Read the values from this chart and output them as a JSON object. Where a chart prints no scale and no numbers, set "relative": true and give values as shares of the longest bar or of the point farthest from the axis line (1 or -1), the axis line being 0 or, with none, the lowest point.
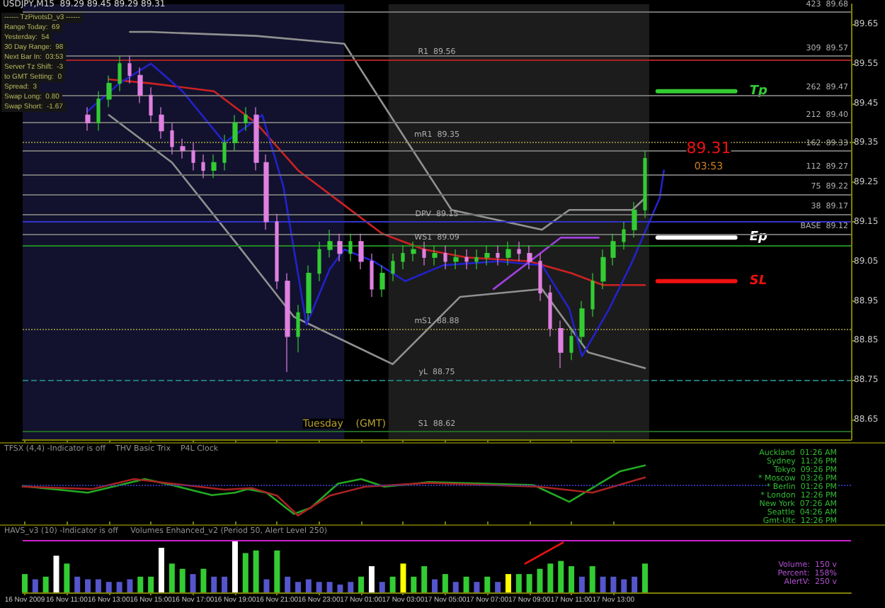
{
  "chart_data": [
    {
      "type": "candlestick",
      "title": "USDJPY,M15  89.29 89.45 89.29 89.31",
      "x": [
        "2009-11-16T12:00",
        "2009-11-16T12:30",
        "2009-11-16T13:00",
        "2009-11-16T13:30",
        "2009-11-16T14:00",
        "2009-11-16T14:30",
        "2009-11-16T15:00",
        "2009-11-16T15:30",
        "2009-11-16T16:00",
        "2009-11-16T16:30",
        "2009-11-16T17:00",
        "2009-11-16T17:30",
        "2009-11-16T18:00",
        "2009-11-16T18:30",
        "2009-11-16T19:00",
        "2009-11-16T19:30",
        "2009-11-16T20:00",
        "2009-11-16T20:30",
        "2009-11-16T21:00",
        "2009-11-16T21:30",
        "2009-11-16T22:00",
        "2009-11-16T22:30",
        "2009-11-16T23:00",
        "2009-11-16T23:30",
        "2009-11-17T00:00",
        "2009-11-17T00:30",
        "2009-11-17T01:00",
        "2009-11-17T01:30",
        "2009-11-17T02:00",
        "2009-11-17T02:30",
        "2009-11-17T03:00",
        "2009-11-17T03:30",
        "2009-11-17T04:00",
        "2009-11-17T04:30",
        "2009-11-17T05:00",
        "2009-11-17T05:30",
        "2009-11-17T06:00",
        "2009-11-17T06:30",
        "2009-11-17T07:00",
        "2009-11-17T07:30",
        "2009-11-17T08:00",
        "2009-11-17T08:30",
        "2009-11-17T09:00",
        "2009-11-17T09:30",
        "2009-11-17T10:00",
        "2009-11-17T10:30",
        "2009-11-17T11:00",
        "2009-11-17T11:30",
        "2009-11-17T12:00",
        "2009-11-17T12:30",
        "2009-11-17T13:00",
        "2009-11-17T13:30",
        "2009-11-17T14:00",
        "2009-11-17T14:30"
      ],
      "ohlc": [
        [
          89.42,
          89.44,
          89.38,
          89.4
        ],
        [
          89.4,
          89.48,
          89.38,
          89.46
        ],
        [
          89.46,
          89.52,
          89.44,
          89.5
        ],
        [
          89.5,
          89.57,
          89.48,
          89.55
        ],
        [
          89.55,
          89.57,
          89.5,
          89.52
        ],
        [
          89.52,
          89.54,
          89.45,
          89.47
        ],
        [
          89.47,
          89.49,
          89.4,
          89.42
        ],
        [
          89.42,
          89.44,
          89.36,
          89.38
        ],
        [
          89.38,
          89.4,
          89.32,
          89.34
        ],
        [
          89.34,
          89.36,
          89.31,
          89.33
        ],
        [
          89.33,
          89.35,
          89.28,
          89.3
        ],
        [
          89.3,
          89.32,
          89.26,
          89.28
        ],
        [
          89.28,
          89.32,
          89.26,
          89.3
        ],
        [
          89.3,
          89.37,
          89.28,
          89.35
        ],
        [
          89.35,
          89.42,
          89.33,
          89.4
        ],
        [
          89.4,
          89.44,
          89.38,
          89.42
        ],
        [
          89.42,
          89.44,
          89.28,
          89.3
        ],
        [
          89.3,
          89.32,
          89.13,
          89.15
        ],
        [
          89.15,
          89.17,
          88.98,
          89.0
        ],
        [
          89.0,
          89.02,
          88.77,
          88.86
        ],
        [
          88.86,
          88.94,
          88.82,
          88.92
        ],
        [
          88.92,
          89.04,
          88.9,
          89.02
        ],
        [
          89.02,
          89.1,
          89.0,
          89.08
        ],
        [
          89.08,
          89.13,
          89.06,
          89.1
        ],
        [
          89.1,
          89.12,
          89.05,
          89.07
        ],
        [
          89.07,
          89.12,
          89.05,
          89.1
        ],
        [
          89.1,
          89.12,
          89.03,
          89.05
        ],
        [
          89.05,
          89.07,
          88.96,
          88.98
        ],
        [
          88.98,
          89.04,
          88.96,
          89.02
        ],
        [
          89.02,
          89.07,
          89.0,
          89.05
        ],
        [
          89.05,
          89.09,
          89.03,
          89.07
        ],
        [
          89.07,
          89.1,
          89.05,
          89.08
        ],
        [
          89.08,
          89.1,
          89.04,
          89.06
        ],
        [
          89.06,
          89.09,
          89.04,
          89.07
        ],
        [
          89.07,
          89.09,
          89.03,
          89.05
        ],
        [
          89.05,
          89.08,
          89.03,
          89.06
        ],
        [
          89.06,
          89.08,
          89.03,
          89.05
        ],
        [
          89.05,
          89.08,
          89.03,
          89.06
        ],
        [
          89.06,
          89.09,
          89.04,
          89.07
        ],
        [
          89.07,
          89.09,
          89.04,
          89.06
        ],
        [
          89.06,
          89.1,
          89.04,
          89.08
        ],
        [
          89.08,
          89.1,
          89.05,
          89.07
        ],
        [
          89.07,
          89.09,
          89.03,
          89.05
        ],
        [
          89.05,
          89.07,
          88.95,
          88.97
        ],
        [
          88.97,
          88.99,
          88.86,
          88.88
        ],
        [
          88.88,
          88.9,
          88.78,
          88.82
        ],
        [
          88.82,
          88.88,
          88.8,
          88.86
        ],
        [
          88.86,
          88.95,
          88.84,
          88.93
        ],
        [
          88.93,
          89.02,
          88.91,
          89.0
        ],
        [
          89.0,
          89.08,
          88.98,
          89.06
        ],
        [
          89.06,
          89.12,
          89.04,
          89.1
        ],
        [
          89.1,
          89.15,
          89.08,
          89.13
        ],
        [
          89.13,
          89.2,
          89.11,
          89.18
        ],
        [
          89.18,
          89.33,
          89.16,
          89.31
        ]
      ],
      "colors": [
        "#e080e0",
        "#33cc33",
        "#33cc33",
        "#33cc33",
        "#e080e0",
        "#e080e0",
        "#e080e0",
        "#e080e0",
        "#e080e0",
        "#e080e0",
        "#e080e0",
        "#e080e0",
        "#33cc33",
        "#33cc33",
        "#33cc33",
        "#33cc33",
        "#e080e0",
        "#e080e0",
        "#e080e0",
        "#e080e0",
        "#33cc33",
        "#33cc33",
        "#33cc33",
        "#33cc33",
        "#e080e0",
        "#33cc33",
        "#e080e0",
        "#e080e0",
        "#33cc33",
        "#33cc33",
        "#33cc33",
        "#33cc33",
        "#e080e0",
        "#33cc33",
        "#e080e0",
        "#33cc33",
        "#e080e0",
        "#33cc33",
        "#33cc33",
        "#e080e0",
        "#33cc33",
        "#e080e0",
        "#e080e0",
        "#e080e0",
        "#e080e0",
        "#e080e0",
        "#33cc33",
        "#33cc33",
        "#33cc33",
        "#33cc33",
        "#33cc33",
        "#33cc33",
        "#33cc33",
        "#33cc33"
      ],
      "series": [
        {
          "type": "line",
          "color": "#909090",
          "x": [
            "2009-11-16T14:00",
            "2009-11-16T15:00",
            "2009-11-16T20:00",
            "2009-11-17T00:12",
            "2009-11-17T03:06",
            "2009-11-17T05:18",
            "2009-11-17T09:36",
            "2009-11-17T10:54",
            "2009-11-17T13:54",
            "2009-11-17T14:30"
          ],
          "values": [
            89.63,
            89.63,
            89.62,
            89.6,
            89.36,
            89.18,
            89.13,
            89.18,
            89.18,
            89.21
          ]
        },
        {
          "type": "line",
          "color": "#909090",
          "x": [
            "2009-11-16T13:00",
            "2009-11-16T16:00",
            "2009-11-16T19:00",
            "2009-11-16T21:48",
            "2009-11-17T02:30",
            "2009-11-17T05:42",
            "2009-11-17T09:36",
            "2009-11-17T11:48",
            "2009-11-17T14:30"
          ],
          "values": [
            89.42,
            89.3,
            89.1,
            88.91,
            88.79,
            88.96,
            88.98,
            88.82,
            88.78
          ]
        },
        {
          "type": "line",
          "color": "#cc2222",
          "x": [
            "2009-11-16T13:00",
            "2009-11-16T15:00",
            "2009-11-16T18:00",
            "2009-11-16T20:00",
            "2009-11-16T22:00",
            "2009-11-17T00:00",
            "2009-11-17T02:00",
            "2009-11-17T04:00",
            "2009-11-17T06:00",
            "2009-11-17T09:00",
            "2009-11-17T11:00",
            "2009-11-17T12:30",
            "2009-11-17T14:30"
          ],
          "values": [
            89.51,
            89.5,
            89.48,
            89.4,
            89.28,
            89.2,
            89.12,
            89.08,
            89.06,
            89.05,
            89.02,
            88.99,
            88.99
          ]
        },
        {
          "type": "line",
          "color": "#2222cc",
          "x": [
            "2009-11-16T12:00",
            "2009-11-16T13:30",
            "2009-11-16T15:00",
            "2009-11-16T16:30",
            "2009-11-16T18:30",
            "2009-11-16T20:18",
            "2009-11-16T21:18",
            "2009-11-16T22:24",
            "2009-11-16T23:30",
            "2009-11-17T00:12",
            "2009-11-17T01:36",
            "2009-11-17T03:06",
            "2009-11-17T04:54",
            "2009-11-17T07:30",
            "2009-11-17T09:36",
            "2009-11-17T10:54",
            "2009-11-17T11:30",
            "2009-11-17T12:48",
            "2009-11-17T13:54",
            "2009-11-17T15:12",
            "2009-11-17T15:24"
          ],
          "values": [
            89.43,
            89.5,
            89.55,
            89.48,
            89.35,
            89.42,
            89.24,
            88.89,
            89.03,
            89.08,
            89.05,
            89.0,
            89.04,
            89.05,
            89.04,
            88.93,
            88.81,
            88.93,
            89.05,
            89.21,
            89.28
          ]
        },
        {
          "type": "line",
          "color": "#a040e0",
          "x": [
            "2009-11-17T07:18",
            "2009-11-17T10:30",
            "2009-11-17T12:18"
          ],
          "values": [
            88.98,
            89.11,
            89.11
          ]
        },
        {
          "type": "line",
          "name": "Tp",
          "color": "#33cc33",
          "x": [
            "2009-11-17T15:06",
            "2009-11-17T18:48"
          ],
          "values": [
            89.48,
            89.48
          ]
        },
        {
          "type": "line",
          "name": "Ep",
          "color": "#ffffff",
          "x": [
            "2009-11-17T15:06",
            "2009-11-17T18:48"
          ],
          "values": [
            89.11,
            89.11
          ]
        },
        {
          "type": "line",
          "name": "SL",
          "color": "#ee1111",
          "x": [
            "2009-11-17T15:06",
            "2009-11-17T18:48"
          ],
          "values": [
            89.0,
            89.0
          ]
        }
      ],
      "xlim": [
        "2009-11-16T08:54",
        "2009-11-18T00:18"
      ],
      "xticks": [
        {
          "value": "2009-11-16T09:00",
          "label": null
        },
        {
          "value": "2009-11-16T11:00",
          "label": null
        },
        {
          "value": "2009-11-16T13:00",
          "label": null
        },
        {
          "value": "2009-11-16T15:00",
          "label": null
        },
        {
          "value": "2009-11-16T17:00",
          "label": null
        },
        {
          "value": "2009-11-16T19:00",
          "label": null
        },
        {
          "value": "2009-11-16T21:00",
          "label": null
        },
        {
          "value": "2009-11-16T23:00",
          "label": null
        },
        {
          "value": "2009-11-17T01:00",
          "label": null
        },
        {
          "value": "2009-11-17T03:00",
          "label": null
        },
        {
          "value": "2009-11-17T05:00",
          "label": null
        },
        {
          "value": "2009-11-17T07:00",
          "label": null
        },
        {
          "value": "2009-11-17T09:00",
          "label": null
        },
        {
          "value": "2009-11-17T11:00",
          "label": null
        },
        {
          "value": "2009-11-17T13:00",
          "label": null
        }
      ],
      "ylim": [
        88.6,
        89.7
      ],
      "yticks": [
        88.65,
        88.75,
        88.85,
        88.95,
        89.05,
        89.15,
        89.25,
        89.35,
        89.45,
        89.55,
        89.65
      ],
      "tick_labels": "y",
      "ref_lines": [
        {
          "axis": "y",
          "value": 89.56,
          "label": "R1  89.56",
          "color": "#aa2222"
        },
        {
          "axis": "y",
          "value": 89.35,
          "label": "mR1  89.35",
          "color": "#808040",
          "line_style": "dotted"
        },
        {
          "axis": "y",
          "value": 89.15,
          "label": "DPV  89.15",
          "color": "#3333cc"
        },
        {
          "axis": "y",
          "value": 89.09,
          "label": "WS1  89.09",
          "color": "#228822"
        },
        {
          "axis": "y",
          "value": 88.88,
          "label": "mS1  88.88",
          "color": "#808040",
          "line_style": "dotted"
        },
        {
          "axis": "y",
          "value": 88.75,
          "label": "yL  88.75",
          "color": "#227777",
          "line_style": "dashed"
        },
        {
          "axis": "y",
          "value": 88.62,
          "label": "S1  88.62",
          "color": "#226622"
        },
        {
          "axis": "y",
          "value": 89.68,
          "label": "423  89.68",
          "color": "#707070"
        },
        {
          "axis": "y",
          "value": 89.57,
          "label": "309  89.57",
          "color": "#707070"
        },
        {
          "axis": "y",
          "value": 89.47,
          "label": "262  89.47",
          "color": "#707070"
        },
        {
          "axis": "y",
          "value": 89.4,
          "label": "212  89.40",
          "color": "#707070"
        },
        {
          "axis": "y",
          "value": 89.33,
          "label": "162  89.33",
          "color": "#707070"
        },
        {
          "axis": "y",
          "value": 89.27,
          "label": "112  89.27",
          "color": "#707070"
        },
        {
          "axis": "y",
          "value": 89.22,
          "label": "75  89.22",
          "color": "#707070"
        },
        {
          "axis": "y",
          "value": 89.17,
          "label": "38  89.17",
          "color": "#707070"
        },
        {
          "axis": "y",
          "value": 89.12,
          "label": "BASE  89.12",
          "color": "#707070"
        }
      ],
      "bands": [
        {
          "axis": "x",
          "from": "2009-11-16T08:54",
          "to": "2009-11-17T00:12",
          "color": "#12122e"
        },
        {
          "axis": "x",
          "from": "2009-11-17T02:18",
          "to": "2009-11-17T14:42",
          "color": "#1c1c1c"
        }
      ],
      "annotations": [
        "------ TzPivotsD_v3 ------",
        "Range Today:  69",
        "Yesterday:  54",
        "30 Day Range:  98",
        "Next Bar In:  03:53",
        "Server Tz Shift:  -3",
        "to GMT Setting:  0",
        "Spread:  3",
        "Swap Long:  0.80",
        "Swap Short:  -1.67",
        "03:53",
        {
          "text": "89.31",
          "x": "2009-11-17T14:30",
          "y": 89.31
        },
        {
          "text": "Tuesday    (GMT)",
          "x": "2009-11-17T00:12",
          "y": 88.62
        }
      ]
    },
    {
      "type": "line",
      "relative": true,
      "tick_labels": false,
      "ref_lines": [
        {
          "axis": "y",
          "value": 0,
          "color": "#3333aa",
          "line_style": "dotted"
        }
      ],
      "xlim": [
        "2009-11-16T08:54",
        "2009-11-18T00:18"
      ],
      "xticks": [
        {
          "value": "2009-11-16T09:00",
          "label": null
        },
        {
          "value": "2009-11-16T11:00",
          "label": null
        },
        {
          "value": "2009-11-16T13:00",
          "label": null
        },
        {
          "value": "2009-11-16T15:00",
          "label": null
        },
        {
          "value": "2009-11-16T17:00",
          "label": null
        },
        {
          "value": "2009-11-16T19:00",
          "label": null
        },
        {
          "value": "2009-11-16T21:00",
          "label": null
        },
        {
          "value": "2009-11-16T23:00",
          "label": null
        },
        {
          "value": "2009-11-17T01:00",
          "label": null
        },
        {
          "value": "2009-11-17T03:00",
          "label": null
        },
        {
          "value": "2009-11-17T05:00",
          "label": null
        },
        {
          "value": "2009-11-17T07:00",
          "label": null
        },
        {
          "value": "2009-11-17T09:00",
          "label": null
        },
        {
          "value": "2009-11-17T11:00",
          "label": null
        },
        {
          "value": "2009-11-17T13:00",
          "label": null
        }
      ],
      "series": [
        {
          "color": "#22aa22",
          "x": [
            "2009-11-16T08:54",
            "2009-11-16T12:00",
            "2009-11-16T13:48",
            "2009-11-16T14:42",
            "2009-11-16T16:00",
            "2009-11-16T17:54",
            "2009-11-16T19:00",
            "2009-11-16T19:36",
            "2009-11-16T20:30",
            "2009-11-16T21:48",
            "2009-11-16T22:36",
            "2009-11-16T23:54",
            "2009-11-17T01:00",
            "2009-11-17T02:06",
            "2009-11-17T03:36",
            "2009-11-17T04:12",
            "2009-11-17T09:12",
            "2009-11-17T10:54",
            "2009-11-17T13:18",
            "2009-11-17T14:30"
          ],
          "values": [
            -0.03,
            -0.25,
            0.05,
            0.2,
            0,
            -0.33,
            -0.25,
            -0.13,
            -0.25,
            -0.95,
            -0.75,
            0.05,
            0.2,
            -0.05,
            0.05,
            0.1,
            0,
            -0.55,
            0.45,
            0.65
          ]
        },
        {
          "color": "#aa2222",
          "x": [
            "2009-11-16T08:54",
            "2009-11-16T12:12",
            "2009-11-16T14:12",
            "2009-11-16T16:00",
            "2009-11-16T18:30",
            "2009-11-16T19:48",
            "2009-11-16T21:00",
            "2009-11-16T22:00",
            "2009-11-16T23:30",
            "2009-11-17T01:12",
            "2009-11-17T04:12",
            "2009-11-17T09:24",
            "2009-11-17T12:00",
            "2009-11-17T14:30"
          ],
          "values": [
            -0.05,
            -0.13,
            0.2,
            0.05,
            -0.15,
            -0.1,
            -0.35,
            -1,
            -0.35,
            -0.05,
            0.07,
            -0.05,
            -0.25,
            0.25
          ]
        }
      ],
      "annotations": [
        "TFSX (4,4) -Indicator is off    THV Basic Trix    P4L Clock",
        "Auckland  01:26 AM",
        "Sydney  11:26 PM",
        "Tokyo  09:26 PM",
        "* Moscow  03:26 PM",
        "* Berlin  01:26 PM",
        "* London  12:26 PM",
        "New York  07:26 AM",
        "Seattle  04:26 AM",
        "Gmt-Utc  12:26 PM"
      ]
    },
    {
      "type": "bar",
      "relative": true,
      "tick_labels": "x",
      "x": [
        "2009-11-16T09:00",
        "2009-11-16T09:30",
        "2009-11-16T10:00",
        "2009-11-16T10:30",
        "2009-11-16T11:00",
        "2009-11-16T11:30",
        "2009-11-16T12:00",
        "2009-11-16T12:30",
        "2009-11-16T13:00",
        "2009-11-16T13:30",
        "2009-11-16T14:00",
        "2009-11-16T14:30",
        "2009-11-16T15:00",
        "2009-11-16T15:30",
        "2009-11-16T16:00",
        "2009-11-16T16:30",
        "2009-11-16T17:00",
        "2009-11-16T17:30",
        "2009-11-16T18:00",
        "2009-11-16T18:30",
        "2009-11-16T19:00",
        "2009-11-16T19:30",
        "2009-11-16T20:00",
        "2009-11-16T20:30",
        "2009-11-16T21:00",
        "2009-11-16T21:30",
        "2009-11-16T22:00",
        "2009-11-16T22:30",
        "2009-11-16T23:00",
        "2009-11-16T23:30",
        "2009-11-17T00:00",
        "2009-11-17T00:30",
        "2009-11-17T01:00",
        "2009-11-17T01:30",
        "2009-11-17T02:00",
        "2009-11-17T02:30",
        "2009-11-17T03:00",
        "2009-11-17T03:30",
        "2009-11-17T04:00",
        "2009-11-17T04:30",
        "2009-11-17T05:00",
        "2009-11-17T05:30",
        "2009-11-17T06:00",
        "2009-11-17T06:30",
        "2009-11-17T07:00",
        "2009-11-17T07:30",
        "2009-11-17T08:00",
        "2009-11-17T08:30",
        "2009-11-17T09:00",
        "2009-11-17T09:30",
        "2009-11-17T10:00",
        "2009-11-17T10:30",
        "2009-11-17T11:00",
        "2009-11-17T11:30",
        "2009-11-17T12:00",
        "2009-11-17T12:30",
        "2009-11-17T13:00",
        "2009-11-17T13:30",
        "2009-11-17T14:00",
        "2009-11-17T14:30"
      ],
      "values": [
        0.35,
        0.25,
        0.3,
        0.7,
        0.55,
        0.3,
        0.25,
        0.25,
        0.2,
        0.2,
        0.25,
        0.3,
        0.3,
        0.85,
        0.55,
        0.45,
        0.35,
        0.45,
        0.3,
        0.3,
        1,
        0.75,
        0.8,
        0.25,
        0.8,
        0.3,
        0.2,
        0.25,
        0.2,
        0.2,
        0.15,
        0.2,
        0.3,
        0.5,
        0.2,
        0.3,
        0.55,
        0.3,
        0.5,
        0.25,
        0.35,
        0.2,
        0.3,
        0.2,
        0.3,
        0.2,
        0.35,
        0.35,
        0.35,
        0.45,
        0.55,
        0.6,
        0.5,
        0.3,
        0.5,
        0.3,
        0.3,
        0.25,
        0.3,
        0.55
      ],
      "colors": [
        "#33cc33",
        "#5555cc",
        "#33cc33",
        "#ffffff",
        "#33cc33",
        "#5555cc",
        "#5555cc",
        "#5555cc",
        "#5555cc",
        "#5555cc",
        "#5555cc",
        "#33cc33",
        "#33cc33",
        "#ffffff",
        "#33cc33",
        "#33cc33",
        "#5555cc",
        "#33cc33",
        "#5555cc",
        "#5555cc",
        "#ffffff",
        "#33cc33",
        "#33cc33",
        "#5555cc",
        "#33cc33",
        "#5555cc",
        "#5555cc",
        "#5555cc",
        "#5555cc",
        "#5555cc",
        "#5555cc",
        "#5555cc",
        "#33cc33",
        "#ffffff",
        "#5555cc",
        "#33cc33",
        "#ffff00",
        "#33cc33",
        "#33cc33",
        "#5555cc",
        "#33cc33",
        "#5555cc",
        "#33cc33",
        "#5555cc",
        "#33cc33",
        "#5555cc",
        "#ffff00",
        "#33cc33",
        "#33cc33",
        "#33cc33",
        "#33cc33",
        "#33cc33",
        "#33cc33",
        "#5555cc",
        "#33cc33",
        "#5555cc",
        "#5555cc",
        "#5555cc",
        "#5555cc",
        "#33cc33"
      ],
      "series": [
        {
          "type": "line",
          "color": "#ee1111",
          "x": [
            "2009-11-17T08:48",
            "2009-11-17T10:36"
          ],
          "values": [
            0.55,
            0.95
          ]
        }
      ],
      "ref_lines": [
        {
          "axis": "y",
          "value": 1,
          "color": "#cc22cc"
        }
      ],
      "xlim": [
        "2009-11-16T08:54",
        "2009-11-18T00:18"
      ],
      "xticks": [
        {
          "value": "2009-11-16T09:00",
          "label": "16 Nov 2009"
        },
        {
          "value": "2009-11-16T11:00",
          "label": "16 Nov 11:00"
        },
        {
          "value": "2009-11-16T13:00",
          "label": "16 Nov 13:00"
        },
        {
          "value": "2009-11-16T15:00",
          "label": "16 Nov 15:00"
        },
        {
          "value": "2009-11-16T17:00",
          "label": "16 Nov 17:00"
        },
        {
          "value": "2009-11-16T19:00",
          "label": "16 Nov 19:00"
        },
        {
          "value": "2009-11-16T21:00",
          "label": "16 Nov 21:00"
        },
        {
          "value": "2009-11-16T23:00",
          "label": "16 Nov 23:00"
        },
        {
          "value": "2009-11-17T01:00",
          "label": "17 Nov 01:00"
        },
        {
          "value": "2009-11-17T03:00",
          "label": "17 Nov 03:00"
        },
        {
          "value": "2009-11-17T05:00",
          "label": "17 Nov 05:00"
        },
        {
          "value": "2009-11-17T07:00",
          "label": "17 Nov 07:00"
        },
        {
          "value": "2009-11-17T09:00",
          "label": "17 Nov 09:00"
        },
        {
          "value": "2009-11-17T11:00",
          "label": "17 Nov 11:00"
        },
        {
          "value": "2009-11-17T13:00",
          "label": "17 Nov 13:00"
        }
      ],
      "annotations": [
        "HAVS_v3 (10) -Indicator is off     Volumes Enhanced_v2 (Period 50, Alert Level 250)",
        "Volume:  150 v",
        "Percent:  158%",
        "AlertV:  250 v"
      ]
    }
  ]
}
